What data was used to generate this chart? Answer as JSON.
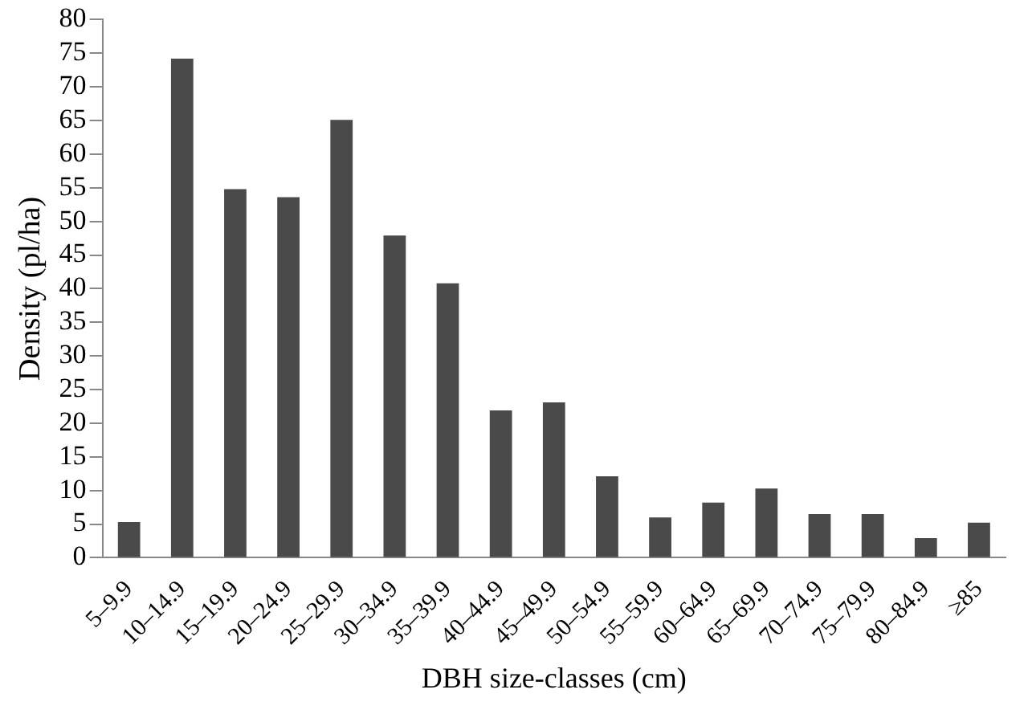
{
  "chart_data": {
    "type": "bar",
    "xlabel": "DBH size-classes (cm)",
    "ylabel": "Density (pl/ha)",
    "categories": [
      "5–9.9",
      "10–14.9",
      "15–19.9",
      "20–24.9",
      "25–29.9",
      "30–34.9",
      "35–39.9",
      "40–44.9",
      "45–49.9",
      "50–54.9",
      "55–59.9",
      "60–64.9",
      "65–69.9",
      "70–74.9",
      "75–79.9",
      "80–84.9",
      "≥85"
    ],
    "values": [
      5.3,
      74.2,
      54.8,
      53.6,
      65.1,
      47.9,
      40.8,
      21.9,
      23.1,
      12.1,
      6.0,
      8.2,
      10.3,
      6.5,
      6.5,
      2.9,
      5.2
    ],
    "color": "#4a4a4a",
    "ylim": [
      0,
      80
    ],
    "yticks": [
      0,
      5,
      10,
      15,
      20,
      25,
      30,
      35,
      40,
      45,
      50,
      55,
      60,
      65,
      70,
      75,
      80
    ],
    "grid": false,
    "legend": false
  }
}
